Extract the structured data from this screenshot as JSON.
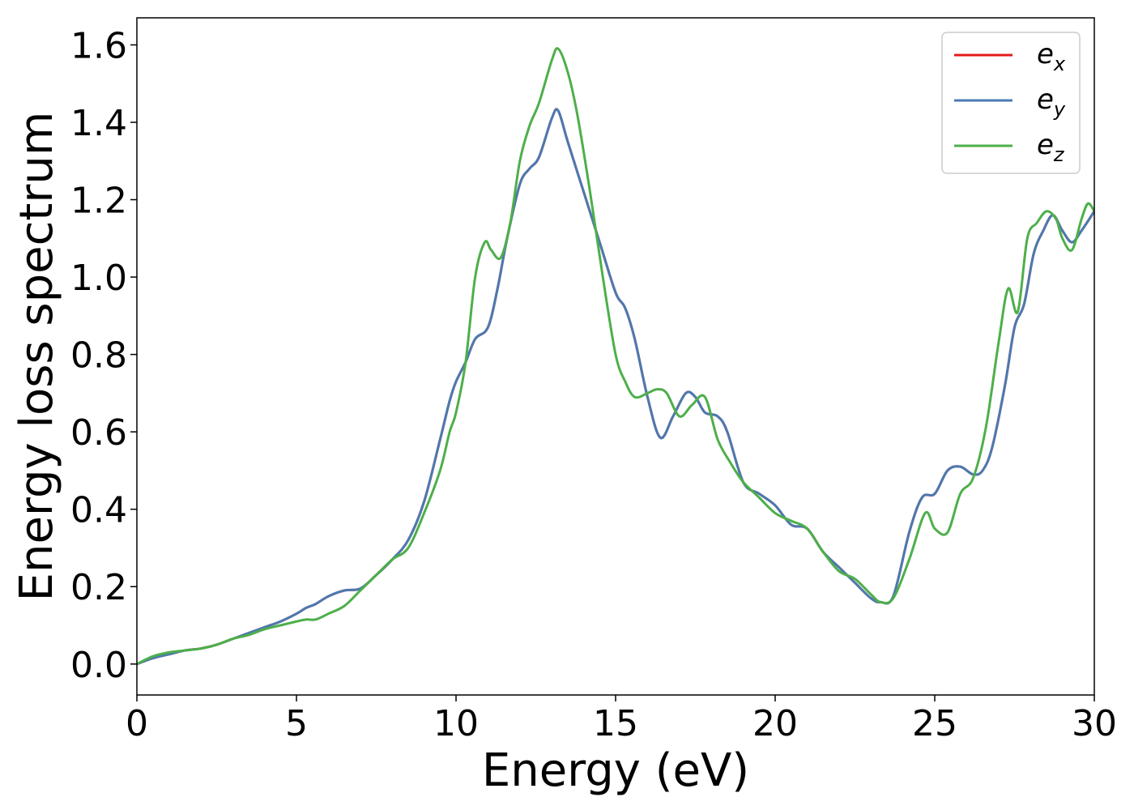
{
  "chart_data": {
    "type": "line",
    "title": "",
    "xlabel": "Energy (eV)",
    "ylabel": "Energy loss spectrum",
    "xlim": [
      0,
      30
    ],
    "ylim": [
      -0.08,
      1.67
    ],
    "xticks": [
      0,
      5,
      10,
      15,
      20,
      25,
      30
    ],
    "xtick_labels": [
      "0",
      "5",
      "10",
      "15",
      "20",
      "25",
      "30"
    ],
    "yticks": [
      0.0,
      0.2,
      0.4,
      0.6,
      0.8,
      1.0,
      1.2,
      1.4,
      1.6
    ],
    "ytick_labels": [
      "0.0",
      "0.2",
      "0.4",
      "0.6",
      "0.8",
      "1.0",
      "1.2",
      "1.4",
      "1.6"
    ],
    "grid": false,
    "legend_position": "top-right",
    "series": [
      {
        "name": "e_x",
        "label_base": "e",
        "label_sub": "x",
        "color": "#e41a1c",
        "x": [
          0,
          0.5,
          1,
          1.5,
          2,
          2.5,
          3,
          3.5,
          4,
          4.5,
          5,
          5.3,
          5.6,
          6,
          6.5,
          7,
          7.5,
          8,
          8.5,
          9,
          9.5,
          9.8,
          10,
          10.3,
          10.6,
          11,
          11.3,
          11.6,
          12,
          12.3,
          12.6,
          13,
          13.2,
          13.5,
          14,
          14.5,
          15,
          15.3,
          15.6,
          16,
          16.4,
          16.8,
          17.2,
          17.5,
          17.8,
          18.2,
          18.5,
          19,
          19.5,
          20,
          20.5,
          21,
          21.5,
          22,
          22.5,
          23,
          23.3,
          23.7,
          24.2,
          24.6,
          25,
          25.4,
          25.8,
          26.2,
          26.5,
          26.8,
          27.2,
          27.5,
          27.8,
          28.1,
          28.4,
          28.7,
          29,
          29.3,
          29.6,
          30
        ],
        "y": [
          0.0,
          0.015,
          0.025,
          0.035,
          0.04,
          0.05,
          0.065,
          0.08,
          0.095,
          0.11,
          0.13,
          0.145,
          0.155,
          0.175,
          0.19,
          0.195,
          0.23,
          0.27,
          0.32,
          0.42,
          0.58,
          0.68,
          0.73,
          0.78,
          0.84,
          0.87,
          0.97,
          1.1,
          1.24,
          1.28,
          1.31,
          1.41,
          1.43,
          1.35,
          1.22,
          1.09,
          0.96,
          0.92,
          0.84,
          0.69,
          0.585,
          0.64,
          0.7,
          0.69,
          0.65,
          0.64,
          0.6,
          0.47,
          0.44,
          0.41,
          0.36,
          0.35,
          0.29,
          0.25,
          0.21,
          0.17,
          0.16,
          0.175,
          0.34,
          0.43,
          0.44,
          0.5,
          0.51,
          0.49,
          0.5,
          0.56,
          0.72,
          0.87,
          0.93,
          1.06,
          1.12,
          1.16,
          1.12,
          1.09,
          1.12,
          1.17
        ]
      },
      {
        "name": "e_y",
        "label_base": "e",
        "label_sub": "y",
        "color": "#4a7ab0",
        "x": [
          0,
          0.5,
          1,
          1.5,
          2,
          2.5,
          3,
          3.5,
          4,
          4.5,
          5,
          5.3,
          5.6,
          6,
          6.5,
          7,
          7.5,
          8,
          8.5,
          9,
          9.5,
          9.8,
          10,
          10.3,
          10.6,
          11,
          11.3,
          11.6,
          12,
          12.3,
          12.6,
          13,
          13.2,
          13.5,
          14,
          14.5,
          15,
          15.3,
          15.6,
          16,
          16.4,
          16.8,
          17.2,
          17.5,
          17.8,
          18.2,
          18.5,
          19,
          19.5,
          20,
          20.5,
          21,
          21.5,
          22,
          22.5,
          23,
          23.3,
          23.7,
          24.2,
          24.6,
          25,
          25.4,
          25.8,
          26.2,
          26.5,
          26.8,
          27.2,
          27.5,
          27.8,
          28.1,
          28.4,
          28.7,
          29,
          29.3,
          29.6,
          30
        ],
        "y": [
          0.0,
          0.015,
          0.025,
          0.035,
          0.04,
          0.05,
          0.065,
          0.08,
          0.095,
          0.11,
          0.13,
          0.145,
          0.155,
          0.175,
          0.19,
          0.195,
          0.23,
          0.27,
          0.32,
          0.42,
          0.58,
          0.68,
          0.73,
          0.78,
          0.84,
          0.87,
          0.97,
          1.1,
          1.24,
          1.28,
          1.31,
          1.41,
          1.43,
          1.35,
          1.22,
          1.09,
          0.96,
          0.92,
          0.84,
          0.69,
          0.585,
          0.64,
          0.7,
          0.69,
          0.65,
          0.64,
          0.6,
          0.47,
          0.44,
          0.41,
          0.36,
          0.35,
          0.29,
          0.25,
          0.21,
          0.17,
          0.16,
          0.175,
          0.34,
          0.43,
          0.44,
          0.5,
          0.51,
          0.49,
          0.5,
          0.56,
          0.72,
          0.87,
          0.93,
          1.06,
          1.12,
          1.16,
          1.12,
          1.09,
          1.12,
          1.17
        ]
      },
      {
        "name": "e_z",
        "label_base": "e",
        "label_sub": "z",
        "color": "#4daf4a",
        "x": [
          0,
          0.5,
          1,
          1.5,
          2,
          2.5,
          3,
          3.5,
          4,
          4.5,
          5,
          5.3,
          5.6,
          6,
          6.5,
          7,
          7.5,
          8,
          8.5,
          9,
          9.5,
          9.8,
          10,
          10.3,
          10.6,
          10.9,
          11.1,
          11.4,
          11.7,
          12,
          12.3,
          12.6,
          13,
          13.2,
          13.5,
          13.8,
          14.2,
          14.6,
          15,
          15.3,
          15.6,
          16,
          16.3,
          16.6,
          17,
          17.4,
          17.8,
          18.2,
          18.6,
          19,
          19.5,
          20,
          20.5,
          21,
          21.5,
          22,
          22.5,
          23,
          23.3,
          23.7,
          24.2,
          24.7,
          25,
          25.4,
          25.8,
          26.2,
          26.6,
          27,
          27.3,
          27.6,
          27.9,
          28.2,
          28.5,
          28.8,
          29,
          29.3,
          29.6,
          29.8,
          30
        ],
        "y": [
          0.0,
          0.02,
          0.03,
          0.035,
          0.04,
          0.05,
          0.065,
          0.075,
          0.09,
          0.1,
          0.11,
          0.115,
          0.115,
          0.13,
          0.15,
          0.19,
          0.23,
          0.27,
          0.3,
          0.39,
          0.5,
          0.6,
          0.65,
          0.78,
          1.0,
          1.09,
          1.07,
          1.05,
          1.14,
          1.3,
          1.39,
          1.45,
          1.56,
          1.59,
          1.53,
          1.42,
          1.22,
          1.0,
          0.8,
          0.73,
          0.69,
          0.7,
          0.71,
          0.7,
          0.64,
          0.67,
          0.69,
          0.58,
          0.52,
          0.47,
          0.43,
          0.39,
          0.37,
          0.35,
          0.29,
          0.24,
          0.22,
          0.18,
          0.16,
          0.17,
          0.27,
          0.39,
          0.35,
          0.34,
          0.44,
          0.48,
          0.61,
          0.83,
          0.97,
          0.91,
          1.1,
          1.14,
          1.17,
          1.15,
          1.1,
          1.07,
          1.15,
          1.19,
          1.17
        ]
      }
    ]
  }
}
